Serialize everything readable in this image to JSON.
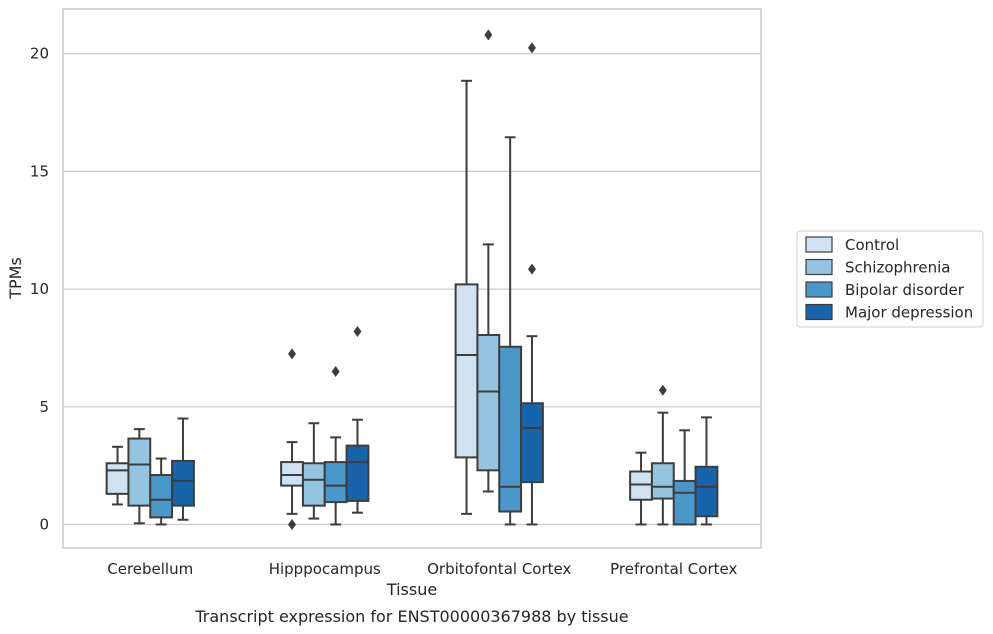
{
  "chart_data": {
    "type": "box",
    "title": "",
    "caption": "Transcript expression for ENST00000367988 by tissue",
    "xlabel": "Tissue",
    "ylabel": "TPMs",
    "ylim": [
      -1,
      21.9
    ],
    "yticks": [
      0,
      5,
      10,
      15,
      20
    ],
    "grid": "horizontal",
    "legend_placement": "right",
    "categories": [
      "Cerebellum",
      "Hipppocampus",
      "Orbitofontal Cortex",
      "Prefrontal Cortex"
    ],
    "series": [
      {
        "name": "Control",
        "color": "#d0e1f2",
        "boxes": [
          {
            "whisker_low": 0.85,
            "q1": 1.3,
            "median": 2.3,
            "q3": 2.6,
            "whisker_high": 3.3,
            "outliers": []
          },
          {
            "whisker_low": 0.45,
            "q1": 1.65,
            "median": 2.1,
            "q3": 2.65,
            "whisker_high": 3.5,
            "outliers": [
              7.25,
              0.0
            ]
          },
          {
            "whisker_low": 0.45,
            "q1": 2.85,
            "median": 7.2,
            "q3": 10.2,
            "whisker_high": 18.85,
            "outliers": []
          },
          {
            "whisker_low": 0.0,
            "q1": 1.05,
            "median": 1.7,
            "q3": 2.25,
            "whisker_high": 3.05,
            "outliers": []
          }
        ]
      },
      {
        "name": "Schizophrenia",
        "color": "#94c4df",
        "boxes": [
          {
            "whisker_low": 0.05,
            "q1": 0.8,
            "median": 2.55,
            "q3": 3.65,
            "whisker_high": 4.05,
            "outliers": []
          },
          {
            "whisker_low": 0.25,
            "q1": 0.8,
            "median": 1.9,
            "q3": 2.6,
            "whisker_high": 4.3,
            "outliers": []
          },
          {
            "whisker_low": 1.4,
            "q1": 2.3,
            "median": 5.65,
            "q3": 8.05,
            "whisker_high": 11.9,
            "outliers": [
              20.8
            ]
          },
          {
            "whisker_low": 0.0,
            "q1": 1.1,
            "median": 1.6,
            "q3": 2.6,
            "whisker_high": 4.75,
            "outliers": [
              5.7
            ]
          }
        ]
      },
      {
        "name": "Bipolar disorder",
        "color": "#4a98c9",
        "boxes": [
          {
            "whisker_low": 0.0,
            "q1": 0.3,
            "median": 1.05,
            "q3": 2.1,
            "whisker_high": 2.8,
            "outliers": []
          },
          {
            "whisker_low": 0.0,
            "q1": 0.95,
            "median": 1.65,
            "q3": 2.65,
            "whisker_high": 3.7,
            "outliers": [
              6.5
            ]
          },
          {
            "whisker_low": 0.0,
            "q1": 0.55,
            "median": 1.6,
            "q3": 7.55,
            "whisker_high": 16.45,
            "outliers": []
          },
          {
            "whisker_low": 0.0,
            "q1": 0.0,
            "median": 1.35,
            "q3": 1.85,
            "whisker_high": 4.0,
            "outliers": []
          }
        ]
      },
      {
        "name": "Major depression",
        "color": "#1764ab",
        "boxes": [
          {
            "whisker_low": 0.2,
            "q1": 0.8,
            "median": 1.85,
            "q3": 2.7,
            "whisker_high": 4.5,
            "outliers": []
          },
          {
            "whisker_low": 0.5,
            "q1": 1.0,
            "median": 2.65,
            "q3": 3.35,
            "whisker_high": 4.45,
            "outliers": [
              8.2
            ]
          },
          {
            "whisker_low": 0.0,
            "q1": 1.8,
            "median": 4.1,
            "q3": 5.15,
            "whisker_high": 8.0,
            "outliers": [
              10.85,
              20.25
            ]
          },
          {
            "whisker_low": 0.0,
            "q1": 0.35,
            "median": 1.6,
            "q3": 2.45,
            "whisker_high": 4.55,
            "outliers": []
          }
        ]
      }
    ]
  }
}
